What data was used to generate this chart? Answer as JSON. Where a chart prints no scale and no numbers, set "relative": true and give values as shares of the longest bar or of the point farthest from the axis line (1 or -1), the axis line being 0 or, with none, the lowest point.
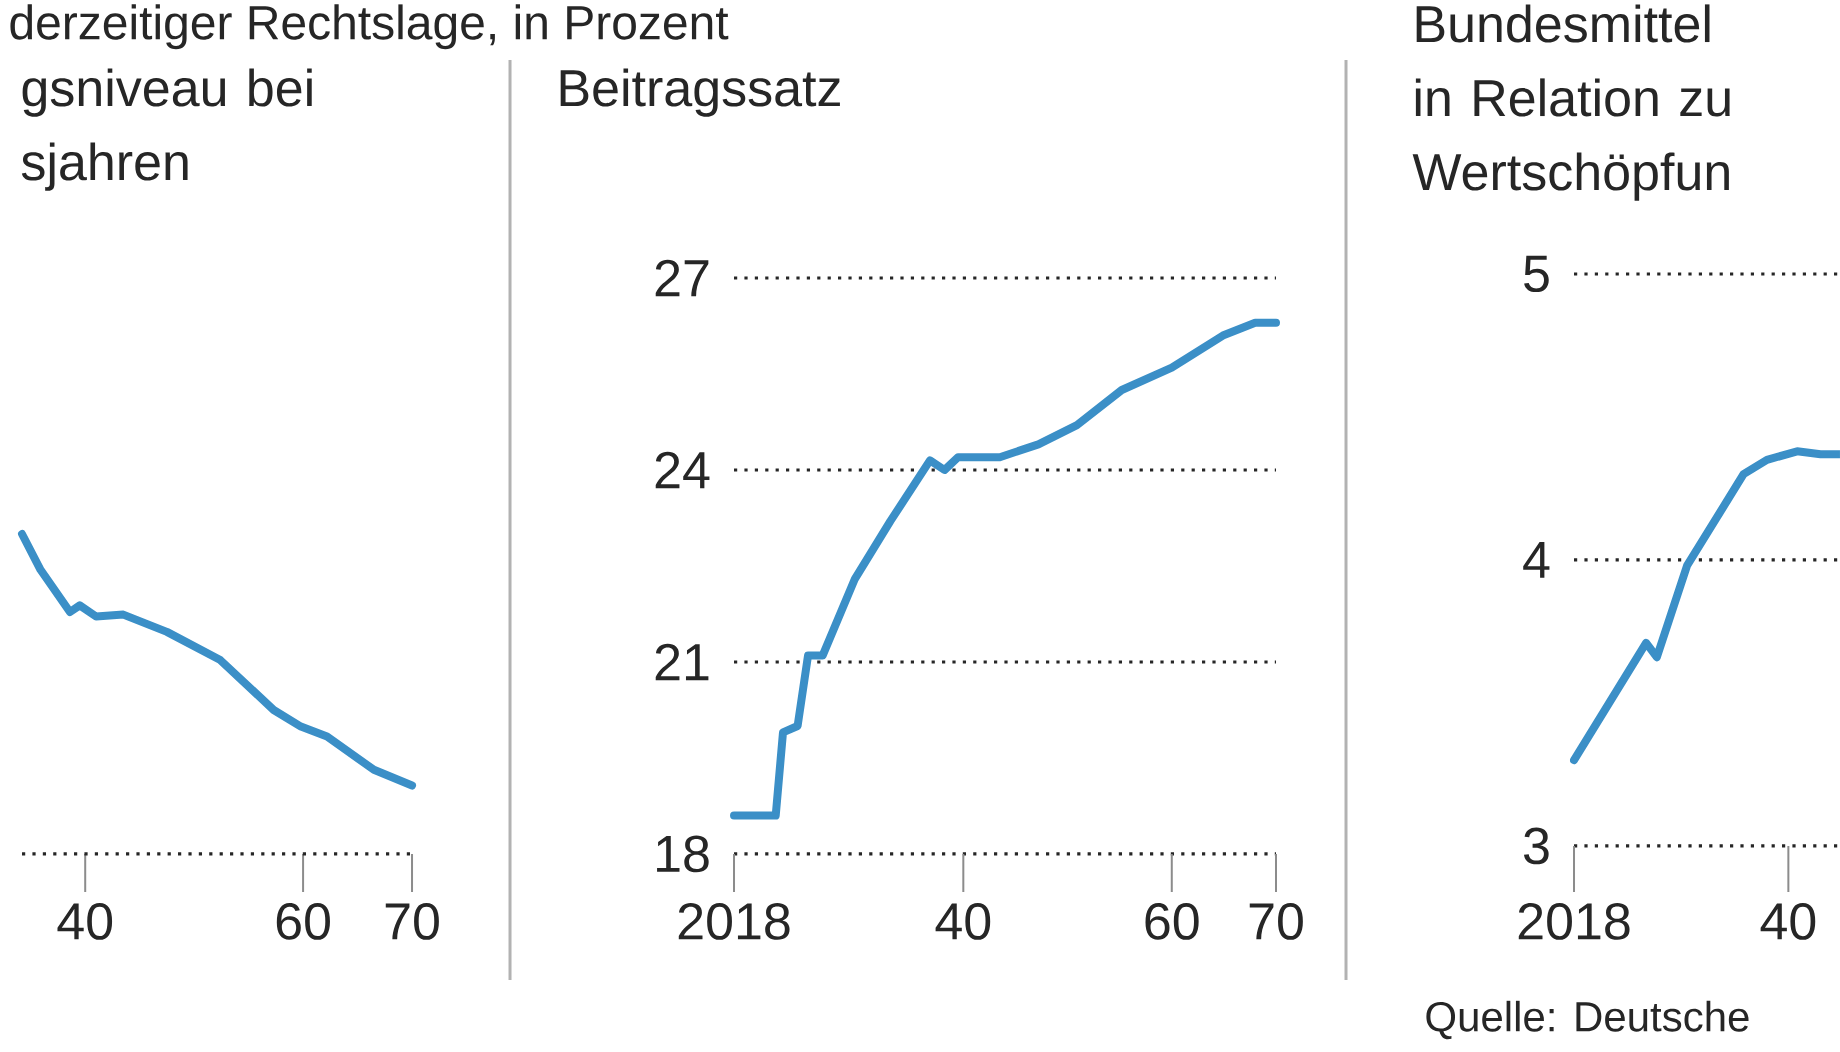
{
  "chart_data": [
    {
      "type": "line",
      "title": "derzeitiger Rechtslage, in Prozent",
      "subtitle": "gsniveau bei sjahren",
      "relative": true,
      "tick_labels": "x",
      "xlim": [
        2034.2,
        2070
      ],
      "xticks": [
        {
          "value": 2040,
          "label": "40"
        },
        {
          "value": 2060,
          "label": "60"
        },
        {
          "value": 2070,
          "label": "70"
        }
      ],
      "series": [
        {
          "color": "#3b8fc7",
          "x": [
            2034.2,
            2035.9,
            2038.6,
            2039.5,
            2041,
            2043.5,
            2047.5,
            2052.4,
            2057.3,
            2059.8,
            2062.2,
            2066.5,
            2070
          ],
          "values": [
            1,
            0.888,
            0.756,
            0.777,
            0.742,
            0.748,
            0.694,
            0.606,
            0.45,
            0.398,
            0.367,
            0.263,
            0.214
          ]
        }
      ]
    },
    {
      "type": "line",
      "title": "Beitragssatz",
      "grid": "y",
      "xlim": [
        2018,
        2070
      ],
      "xticks": [
        {
          "value": 2018,
          "label": "2018"
        },
        {
          "value": 2040,
          "label": "40"
        },
        {
          "value": 2060,
          "label": "60"
        },
        {
          "value": 2070,
          "label": "70"
        }
      ],
      "ylim": [
        18,
        27
      ],
      "yticks": [
        18,
        21,
        24,
        27
      ],
      "series": [
        {
          "color": "#3b8fc7",
          "x": [
            2018,
            2022,
            2022.7,
            2024.1,
            2025.1,
            2026.5,
            2029.6,
            2033,
            2036.8,
            2038.2,
            2039.5,
            2043.5,
            2047.2,
            2050.9,
            2055.2,
            2060,
            2064.9,
            2068,
            2070
          ],
          "values": [
            18.6,
            18.6,
            19.9,
            20.0,
            21.1,
            21.1,
            22.3,
            23.2,
            24.15,
            24.0,
            24.2,
            24.2,
            24.4,
            24.7,
            25.25,
            25.6,
            26.1,
            26.3,
            26.3
          ]
        }
      ]
    },
    {
      "type": "line",
      "title": "Bundesmittel in Relation zu Wertschöpfun",
      "grid": "y",
      "annotations": [
        "Quelle: Deutsche"
      ],
      "xlim": [
        2018,
        2045.3
      ],
      "xticks": [
        {
          "value": 2018,
          "label": "2018"
        },
        {
          "value": 2040,
          "label": "40"
        }
      ],
      "ylim": [
        3,
        5
      ],
      "yticks": [
        3,
        4,
        5
      ],
      "series": [
        {
          "color": "#3b8fc7",
          "x": [
            2018,
            2025.4,
            2026.5,
            2029.6,
            2035.4,
            2037.8,
            2040.9,
            2043.3,
            2045.3
          ],
          "values": [
            3.3,
            3.71,
            3.66,
            3.98,
            4.3,
            4.35,
            4.38,
            4.37,
            4.37
          ]
        }
      ]
    }
  ]
}
